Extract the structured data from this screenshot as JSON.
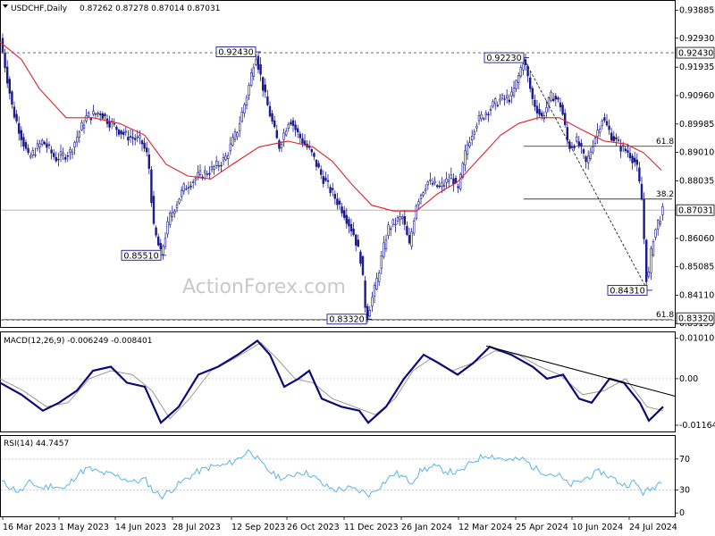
{
  "header": {
    "symbol": "USDCHF,Daily",
    "ohlc": "0.87262 0.87278 0.87014 0.87031"
  },
  "watermark": "ActionForex.com",
  "colors": {
    "candle": "#1a1a8c",
    "ma": "#e0202a",
    "macd": "#0a0a78",
    "signal": "#999999",
    "rsi": "#5ab4e8",
    "grid": "#bbbbbb",
    "last_price_line": "#aaaaaa"
  },
  "chart_data": [
    {
      "type": "candlestick",
      "panel": "price",
      "x_ticks": [
        "16 Mar 2023",
        "1 May 2023",
        "14 Jun 2023",
        "28 Jul 2023",
        "12 Sep 2023",
        "26 Oct 2023",
        "11 Dec 2023",
        "26 Jan 2024",
        "12 Mar 2024",
        "25 Apr 2024",
        "10 Jun 2024",
        "24 Jul 2024"
      ],
      "y_ticks": [
        "0.93885",
        "0.92930",
        "0.91935",
        "0.90960",
        "0.89985",
        "0.89010",
        "0.88035",
        "0.86060",
        "0.85085",
        "0.84110",
        "0.83135"
      ],
      "ylim": [
        0.8302,
        0.9421
      ],
      "price_path": [
        [
          0,
          0.93
        ],
        [
          14,
          0.905
        ],
        [
          32,
          0.888
        ],
        [
          48,
          0.894
        ],
        [
          62,
          0.888
        ],
        [
          78,
          0.89
        ],
        [
          96,
          0.902
        ],
        [
          112,
          0.904
        ],
        [
          124,
          0.9
        ],
        [
          140,
          0.896
        ],
        [
          158,
          0.894
        ],
        [
          166,
          0.888
        ],
        [
          172,
          0.864
        ],
        [
          180,
          0.8551
        ],
        [
          190,
          0.868
        ],
        [
          206,
          0.878
        ],
        [
          222,
          0.882
        ],
        [
          236,
          0.884
        ],
        [
          252,
          0.888
        ],
        [
          266,
          0.898
        ],
        [
          278,
          0.912
        ],
        [
          286,
          0.9243
        ],
        [
          296,
          0.91
        ],
        [
          312,
          0.892
        ],
        [
          324,
          0.902
        ],
        [
          334,
          0.896
        ],
        [
          348,
          0.89
        ],
        [
          360,
          0.882
        ],
        [
          372,
          0.876
        ],
        [
          384,
          0.87
        ],
        [
          396,
          0.862
        ],
        [
          404,
          0.853
        ],
        [
          410,
          0.8332
        ],
        [
          420,
          0.844
        ],
        [
          434,
          0.864
        ],
        [
          450,
          0.868
        ],
        [
          458,
          0.858
        ],
        [
          466,
          0.873
        ],
        [
          478,
          0.88
        ],
        [
          492,
          0.878
        ],
        [
          506,
          0.882
        ],
        [
          512,
          0.876
        ],
        [
          522,
          0.892
        ],
        [
          532,
          0.9
        ],
        [
          544,
          0.904
        ],
        [
          558,
          0.908
        ],
        [
          572,
          0.909
        ],
        [
          580,
          0.916
        ],
        [
          586,
          0.9223
        ],
        [
          596,
          0.908
        ],
        [
          606,
          0.902
        ],
        [
          618,
          0.91
        ],
        [
          628,
          0.906
        ],
        [
          636,
          0.892
        ],
        [
          646,
          0.894
        ],
        [
          656,
          0.886
        ],
        [
          664,
          0.894
        ],
        [
          674,
          0.902
        ],
        [
          684,
          0.896
        ],
        [
          694,
          0.892
        ],
        [
          704,
          0.89
        ],
        [
          712,
          0.886
        ],
        [
          718,
          0.874
        ],
        [
          724,
          0.8431
        ],
        [
          730,
          0.86
        ],
        [
          736,
          0.866
        ],
        [
          742,
          0.8703
        ]
      ],
      "moving_average": [
        [
          0,
          0.928
        ],
        [
          24,
          0.922
        ],
        [
          44,
          0.912
        ],
        [
          74,
          0.902
        ],
        [
          104,
          0.902
        ],
        [
          134,
          0.9
        ],
        [
          162,
          0.896
        ],
        [
          186,
          0.886
        ],
        [
          210,
          0.882
        ],
        [
          236,
          0.881
        ],
        [
          260,
          0.886
        ],
        [
          290,
          0.892
        ],
        [
          322,
          0.894
        ],
        [
          350,
          0.892
        ],
        [
          372,
          0.887
        ],
        [
          394,
          0.879
        ],
        [
          416,
          0.872
        ],
        [
          440,
          0.87
        ],
        [
          466,
          0.87
        ],
        [
          490,
          0.876
        ],
        [
          512,
          0.88
        ],
        [
          536,
          0.888
        ],
        [
          560,
          0.896
        ],
        [
          580,
          0.9
        ],
        [
          602,
          0.902
        ],
        [
          626,
          0.902
        ],
        [
          650,
          0.898
        ],
        [
          676,
          0.894
        ],
        [
          700,
          0.893
        ],
        [
          720,
          0.89
        ],
        [
          740,
          0.884
        ]
      ],
      "annotations": [
        {
          "text": "0.92430",
          "x": 286,
          "y": 0.9243,
          "side": "left"
        },
        {
          "text": "0.85510",
          "x": 180,
          "y": 0.8551,
          "side": "left"
        },
        {
          "text": "0.83320",
          "x": 410,
          "y": 0.8332,
          "side": "left"
        },
        {
          "text": "0.92230",
          "x": 586,
          "y": 0.9223,
          "side": "left"
        },
        {
          "text": "0.84310",
          "x": 724,
          "y": 0.8431,
          "side": "left"
        }
      ],
      "right_labels": [
        {
          "text": "0.92430",
          "y": 0.9243
        },
        {
          "text": "0.87031",
          "y": 0.8703
        },
        {
          "text": "0.83320",
          "y": 0.8332
        }
      ],
      "fib_levels": [
        {
          "label": "61.8",
          "y": 0.8922
        },
        {
          "label": "38.2",
          "y": 0.8741
        },
        {
          "label": "61.8",
          "y": 0.8327
        }
      ]
    },
    {
      "type": "line",
      "panel": "macd",
      "title": "MACD(12,26,9) -0.006249 -0.008401",
      "y_ticks": [
        "0.010101",
        "0.00",
        "-0.011645"
      ],
      "ylim": [
        -0.0132,
        0.0116
      ],
      "macd_path": [
        [
          0,
          -0.001
        ],
        [
          24,
          -0.004
        ],
        [
          48,
          -0.008
        ],
        [
          66,
          -0.006
        ],
        [
          86,
          -0.003
        ],
        [
          104,
          0.002
        ],
        [
          124,
          0.003
        ],
        [
          142,
          -0.001
        ],
        [
          162,
          -0.002
        ],
        [
          180,
          -0.011
        ],
        [
          200,
          -0.007
        ],
        [
          222,
          0.001
        ],
        [
          244,
          0.003
        ],
        [
          266,
          0.006
        ],
        [
          288,
          0.0095
        ],
        [
          302,
          0.006
        ],
        [
          318,
          -0.002
        ],
        [
          334,
          0.0
        ],
        [
          346,
          0.002
        ],
        [
          360,
          -0.005
        ],
        [
          382,
          -0.007
        ],
        [
          402,
          -0.008
        ],
        [
          412,
          -0.011
        ],
        [
          432,
          -0.007
        ],
        [
          452,
          0.0
        ],
        [
          474,
          0.006
        ],
        [
          490,
          0.004
        ],
        [
          512,
          0.001
        ],
        [
          530,
          0.004
        ],
        [
          548,
          0.008
        ],
        [
          572,
          0.006
        ],
        [
          596,
          0.003
        ],
        [
          612,
          0.0
        ],
        [
          630,
          0.001
        ],
        [
          648,
          -0.005
        ],
        [
          662,
          -0.006
        ],
        [
          682,
          0.0
        ],
        [
          698,
          -0.001
        ],
        [
          716,
          -0.006
        ],
        [
          726,
          -0.0105
        ],
        [
          742,
          -0.007
        ]
      ],
      "signal_path": [
        [
          0,
          0.0
        ],
        [
          26,
          -0.003
        ],
        [
          52,
          -0.007
        ],
        [
          76,
          -0.006
        ],
        [
          100,
          0.0
        ],
        [
          124,
          0.002
        ],
        [
          148,
          0.001
        ],
        [
          170,
          -0.003
        ],
        [
          190,
          -0.01
        ],
        [
          212,
          -0.005
        ],
        [
          236,
          0.002
        ],
        [
          262,
          0.005
        ],
        [
          292,
          0.009
        ],
        [
          310,
          0.005
        ],
        [
          330,
          0.0
        ],
        [
          350,
          -0.001
        ],
        [
          372,
          -0.005
        ],
        [
          396,
          -0.007
        ],
        [
          420,
          -0.009
        ],
        [
          442,
          -0.005
        ],
        [
          462,
          0.002
        ],
        [
          482,
          0.005
        ],
        [
          506,
          0.002
        ],
        [
          530,
          0.004
        ],
        [
          554,
          0.007
        ],
        [
          580,
          0.006
        ],
        [
          604,
          0.003
        ],
        [
          626,
          0.001
        ],
        [
          652,
          -0.004
        ],
        [
          676,
          -0.003
        ],
        [
          700,
          0.0
        ],
        [
          724,
          -0.007
        ],
        [
          742,
          -0.008
        ]
      ],
      "trendline": [
        [
          544,
          0.0082
        ],
        [
          756,
          -0.0044
        ]
      ]
    },
    {
      "type": "line",
      "panel": "rsi",
      "title": "RSI(14) 44.7457",
      "y_ticks": [
        "70",
        "30",
        "0"
      ],
      "ylim": [
        -4.4,
        100
      ],
      "rsi_path": [
        [
          0,
          41
        ],
        [
          10,
          35
        ],
        [
          22,
          27
        ],
        [
          34,
          40
        ],
        [
          46,
          32
        ],
        [
          60,
          36
        ],
        [
          72,
          30
        ],
        [
          86,
          50
        ],
        [
          98,
          58
        ],
        [
          112,
          52
        ],
        [
          124,
          50
        ],
        [
          136,
          46
        ],
        [
          150,
          40
        ],
        [
          162,
          44
        ],
        [
          172,
          28
        ],
        [
          182,
          22
        ],
        [
          194,
          32
        ],
        [
          208,
          44
        ],
        [
          222,
          54
        ],
        [
          236,
          60
        ],
        [
          252,
          62
        ],
        [
          266,
          70
        ],
        [
          280,
          82
        ],
        [
          292,
          64
        ],
        [
          306,
          50
        ],
        [
          320,
          44
        ],
        [
          334,
          54
        ],
        [
          348,
          50
        ],
        [
          362,
          36
        ],
        [
          374,
          30
        ],
        [
          390,
          32
        ],
        [
          404,
          28
        ],
        [
          414,
          24
        ],
        [
          428,
          38
        ],
        [
          442,
          52
        ],
        [
          452,
          46
        ],
        [
          460,
          40
        ],
        [
          472,
          56
        ],
        [
          486,
          60
        ],
        [
          500,
          54
        ],
        [
          514,
          52
        ],
        [
          528,
          66
        ],
        [
          544,
          76
        ],
        [
          556,
          72
        ],
        [
          572,
          68
        ],
        [
          586,
          70
        ],
        [
          598,
          58
        ],
        [
          612,
          52
        ],
        [
          626,
          48
        ],
        [
          636,
          36
        ],
        [
          648,
          40
        ],
        [
          660,
          48
        ],
        [
          672,
          54
        ],
        [
          684,
          46
        ],
        [
          698,
          36
        ],
        [
          710,
          40
        ],
        [
          720,
          26
        ],
        [
          730,
          32
        ],
        [
          742,
          44
        ]
      ]
    }
  ]
}
